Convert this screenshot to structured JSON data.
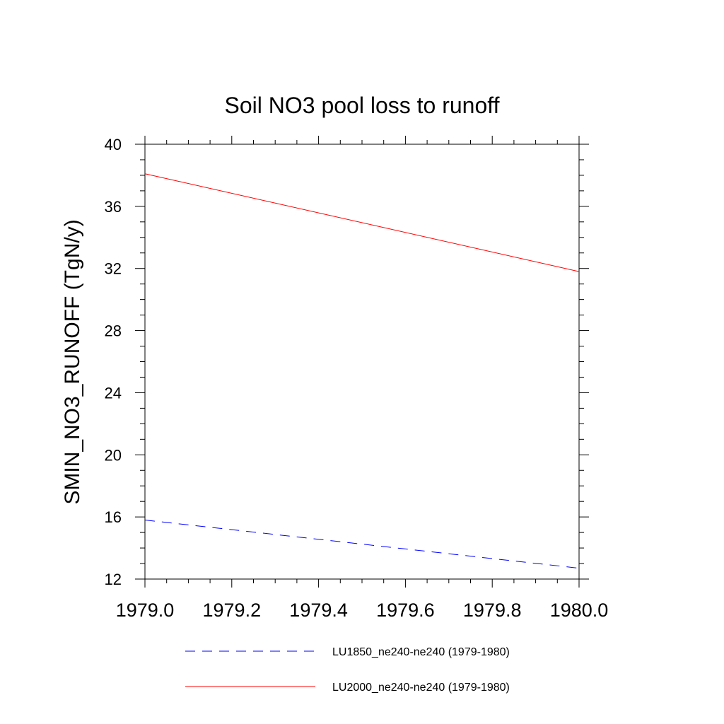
{
  "chart_data": {
    "type": "line",
    "title": "Soil NO3 pool loss to runoff",
    "xlabel": "",
    "ylabel": "SMIN_NO3_RUNOFF  (TgN/y)",
    "xlim": [
      1979.0,
      1980.0
    ],
    "ylim": [
      12,
      40
    ],
    "x_ticks": [
      "1979.0",
      "1979.2",
      "1979.4",
      "1979.6",
      "1979.8",
      "1980.0"
    ],
    "y_ticks": [
      "12",
      "16",
      "20",
      "24",
      "28",
      "32",
      "36",
      "40"
    ],
    "grid": false,
    "legend_position": "bottom",
    "series": [
      {
        "name": "LU1850_ne240-ne240 (1979-1980)",
        "color": "#0000ff",
        "style": "dashed",
        "x": [
          1979.0,
          1980.0
        ],
        "y": [
          15.8,
          12.7
        ]
      },
      {
        "name": "LU2000_ne240-ne240 (1979-1980)",
        "color": "#ff0000",
        "style": "solid",
        "x": [
          1979.0,
          1980.0
        ],
        "y": [
          38.1,
          31.8
        ]
      }
    ]
  }
}
